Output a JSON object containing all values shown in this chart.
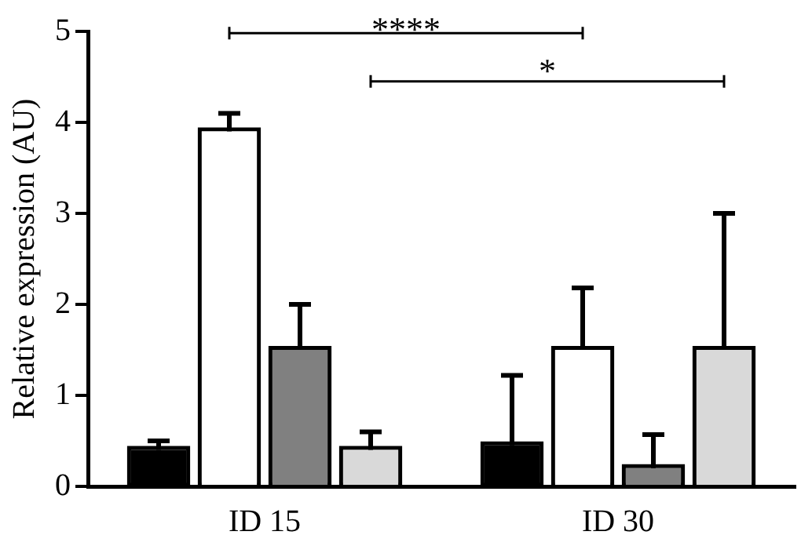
{
  "chart_data": {
    "type": "bar",
    "ylabel": "Relative expression (AU)",
    "categories": [
      "ID 15",
      "ID 30"
    ],
    "series": [
      {
        "color": "#000000",
        "values": [
          0.4,
          0.45
        ],
        "errors": [
          [
            0.4,
            0.5
          ],
          [
            0.45,
            1.22
          ]
        ]
      },
      {
        "color": "#ffffff",
        "values": [
          3.9,
          1.5
        ],
        "errors": [
          [
            3.9,
            4.1
          ],
          [
            1.5,
            2.18
          ]
        ]
      },
      {
        "color": "#808080",
        "values": [
          1.5,
          0.2
        ],
        "errors": [
          [
            1.5,
            2.0
          ],
          [
            0.2,
            0.57
          ]
        ]
      },
      {
        "color": "#d9d9d9",
        "values": [
          0.4,
          1.5
        ],
        "errors": [
          [
            0.4,
            0.6
          ],
          [
            1.5,
            3.0
          ]
        ]
      }
    ],
    "ylim": [
      0,
      5
    ],
    "yticks": [
      0,
      1,
      2,
      3,
      4,
      5
    ],
    "grid": false,
    "legend": false,
    "annotations": [
      "****",
      "*"
    ]
  }
}
